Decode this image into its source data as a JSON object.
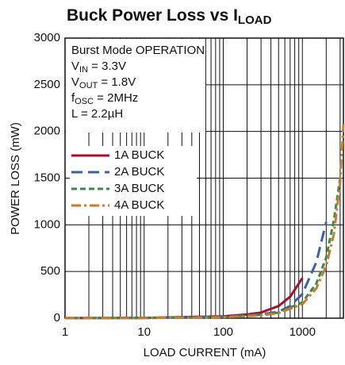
{
  "chart_data": {
    "type": "line",
    "title": {
      "text": "Buck Power Loss vs I",
      "sub": "LOAD"
    },
    "xlabel": "LOAD CURRENT (mA)",
    "ylabel": "POWER LOSS (mW)",
    "xscale": "log",
    "xlim": [
      1,
      3300
    ],
    "ylim": [
      0,
      3000
    ],
    "xticks": [
      1,
      10,
      100,
      1000
    ],
    "xminor": [
      2,
      3,
      4,
      5,
      6,
      7,
      8,
      9,
      20,
      30,
      40,
      50,
      60,
      70,
      80,
      90,
      200,
      300,
      400,
      500,
      600,
      700,
      800,
      900,
      2000,
      3000
    ],
    "yticks": [
      0,
      500,
      1000,
      1500,
      2000,
      2500,
      3000
    ],
    "grid": true,
    "annotations": [
      {
        "text": "Burst Mode OPERATION"
      },
      {
        "text": "V",
        "sub": "IN",
        "rest": " = 3.3V"
      },
      {
        "text": "V",
        "sub": "OUT",
        "rest": " = 1.8V"
      },
      {
        "text": "f",
        "sub": "OSC",
        "rest": " = 2MHz"
      },
      {
        "text": "L = 2.2µH"
      }
    ],
    "legend": "upper left",
    "series": [
      {
        "name": "1A BUCK",
        "color": "#a0112d",
        "dash": "none",
        "x": [
          1,
          10,
          100,
          200,
          300,
          500,
          700,
          1000
        ],
        "values": [
          1,
          3,
          20,
          40,
          60,
          130,
          230,
          430
        ]
      },
      {
        "name": "2A BUCK",
        "color": "#3a5fb0",
        "dash": "14,7",
        "x": [
          1,
          10,
          100,
          300,
          500,
          700,
          1000,
          1500,
          2000
        ],
        "values": [
          1,
          2,
          15,
          40,
          70,
          130,
          260,
          600,
          1030
        ]
      },
      {
        "name": "3A BUCK",
        "color": "#3a8a4a",
        "dash": "7,4",
        "x": [
          1,
          10,
          100,
          300,
          500,
          1000,
          1500,
          2000,
          2500,
          3000
        ],
        "values": [
          1,
          2,
          12,
          35,
          60,
          170,
          370,
          650,
          1050,
          1500
        ]
      },
      {
        "name": "4A BUCK",
        "color": "#c97b2e",
        "dash": "12,4,3,4",
        "x": [
          1,
          10,
          100,
          300,
          500,
          1000,
          1500,
          2000,
          2500,
          3000,
          3300
        ],
        "values": [
          1,
          2,
          10,
          30,
          55,
          150,
          320,
          560,
          900,
          1450,
          2080
        ]
      }
    ]
  }
}
